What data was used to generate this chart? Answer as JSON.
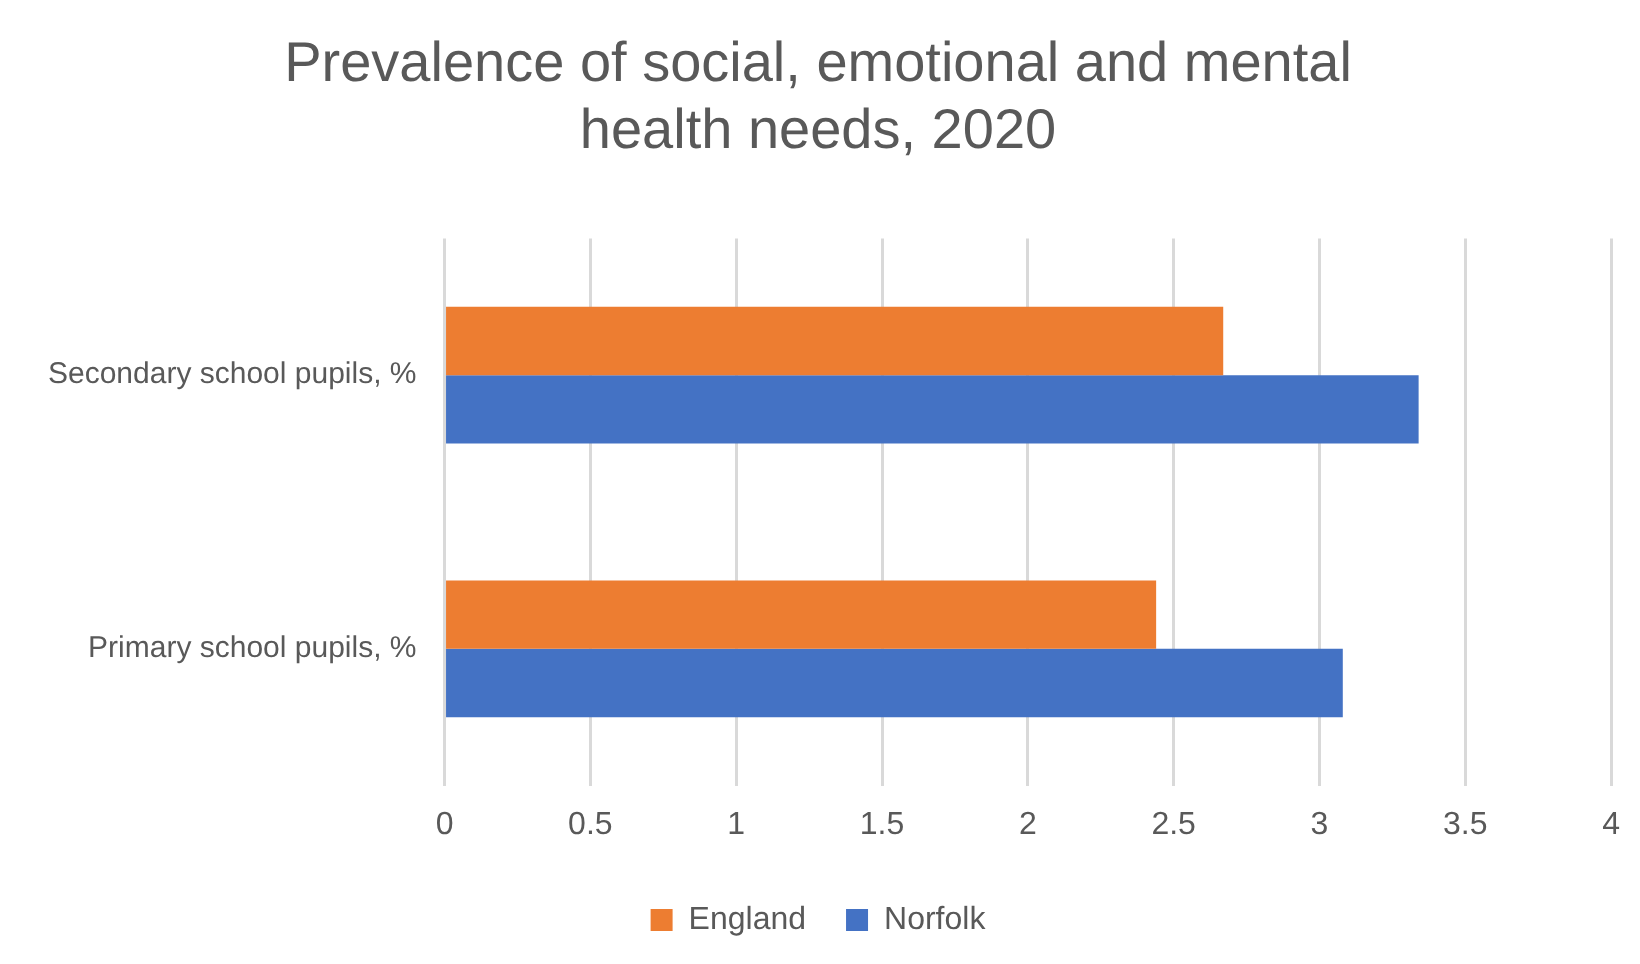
{
  "chart_data": {
    "type": "bar",
    "orientation": "horizontal",
    "title": "Prevalence of social, emotional and mental health needs, 2020",
    "categories": [
      "Secondary school pupils, %",
      "Primary school pupils, %"
    ],
    "series": [
      {
        "name": "England",
        "color": "#ed7d31",
        "values": [
          2.67,
          2.44
        ]
      },
      {
        "name": "Norfolk",
        "color": "#4472c4",
        "values": [
          3.34,
          3.08
        ]
      }
    ],
    "xlim": [
      0,
      4
    ],
    "xticks": [
      0,
      0.5,
      1,
      1.5,
      2,
      2.5,
      3,
      3.5,
      4
    ],
    "grid": "x",
    "legend": "bottom"
  }
}
